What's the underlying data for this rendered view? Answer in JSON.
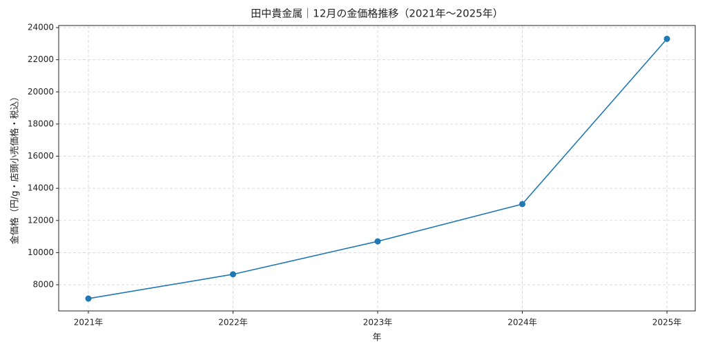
{
  "chart_data": {
    "type": "line",
    "title": "田中貴金属｜12月の金価格推移（2021年〜2025年）",
    "x_label": "年",
    "y_label": "金価格（円/g・店頭小売価格・税込）",
    "categories": [
      "2021年",
      "2022年",
      "2023年",
      "2024年",
      "2025年"
    ],
    "values": [
      7140,
      8650,
      10700,
      13020,
      23300
    ],
    "color": "#1f77b4",
    "ylim": [
      6370,
      24130
    ],
    "yticks": [
      8000,
      10000,
      12000,
      14000,
      16000,
      18000,
      20000,
      22000,
      24000
    ],
    "grid": true
  }
}
